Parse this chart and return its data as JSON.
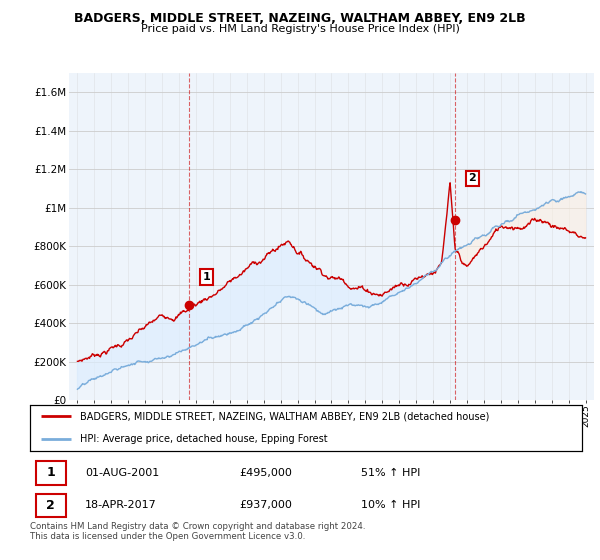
{
  "title": "BADGERS, MIDDLE STREET, NAZEING, WALTHAM ABBEY, EN9 2LB",
  "subtitle": "Price paid vs. HM Land Registry's House Price Index (HPI)",
  "legend_label_red": "BADGERS, MIDDLE STREET, NAZEING, WALTHAM ABBEY, EN9 2LB (detached house)",
  "legend_label_blue": "HPI: Average price, detached house, Epping Forest",
  "table_rows": [
    {
      "num": "1",
      "date": "01-AUG-2001",
      "price": "£495,000",
      "change": "51% ↑ HPI"
    },
    {
      "num": "2",
      "date": "18-APR-2017",
      "price": "£937,000",
      "change": "10% ↑ HPI"
    }
  ],
  "footer": "Contains HM Land Registry data © Crown copyright and database right 2024.\nThis data is licensed under the Open Government Licence v3.0.",
  "ylim": [
    0,
    1700000
  ],
  "yticks": [
    0,
    200000,
    400000,
    600000,
    800000,
    1000000,
    1200000,
    1400000,
    1600000
  ],
  "ytick_labels": [
    "£0",
    "£200K",
    "£400K",
    "£600K",
    "£800K",
    "£1M",
    "£1.2M",
    "£1.4M",
    "£1.6M"
  ],
  "red_color": "#cc0000",
  "blue_color": "#7aaddb",
  "fill_color": "#ddeeff",
  "marker1_year": 2001.58,
  "marker1_value": 495000,
  "marker2_year": 2017.29,
  "marker2_value": 937000,
  "bg_color": "#ffffff",
  "plot_bg_color": "#eef4fb",
  "grid_color": "#cccccc"
}
